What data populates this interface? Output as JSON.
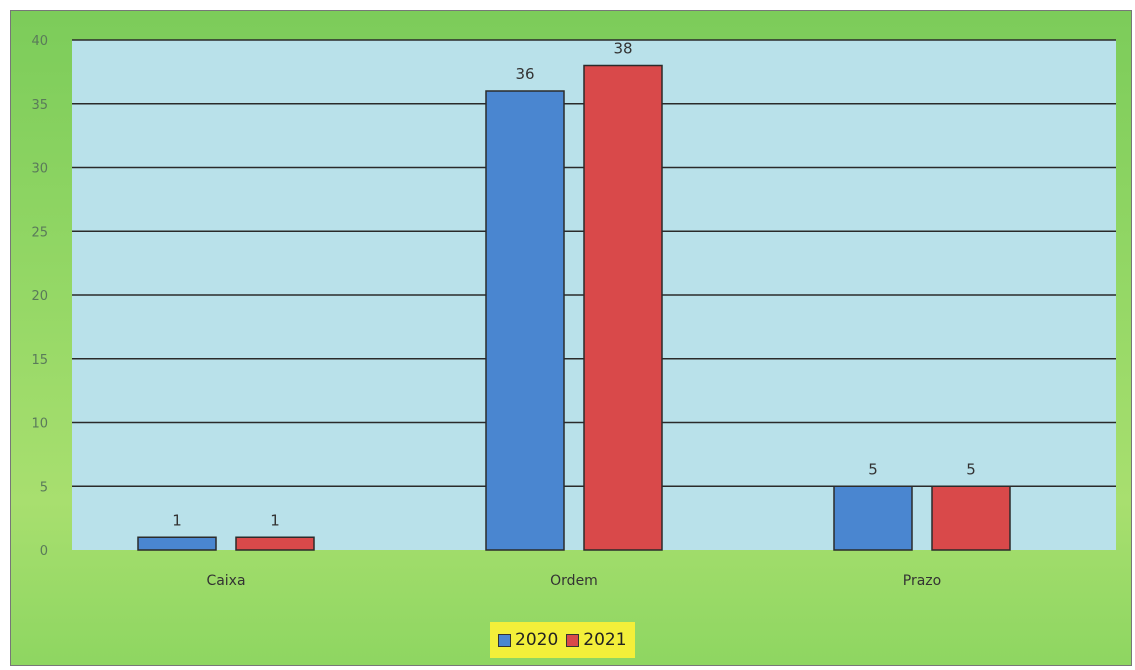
{
  "chart_data": {
    "type": "bar",
    "categories": [
      "Caixa",
      "Ordem",
      "Prazo"
    ],
    "series": [
      {
        "name": "2020",
        "values": [
          1,
          36,
          5
        ],
        "color": "#4a86d0"
      },
      {
        "name": "2021",
        "values": [
          1,
          38,
          5
        ],
        "color": "#d9494a"
      }
    ],
    "ylim": [
      0,
      40
    ],
    "yticks": [
      0,
      5,
      10,
      15,
      20,
      25,
      30,
      35,
      40
    ],
    "grid": true,
    "legend_position": "bottom",
    "title": "",
    "xlabel": "",
    "ylabel": "",
    "colors": {
      "plot_background": "#b9e1ea",
      "gridline": "#2a2a2a",
      "legend_background": "#f3ef3a"
    }
  }
}
